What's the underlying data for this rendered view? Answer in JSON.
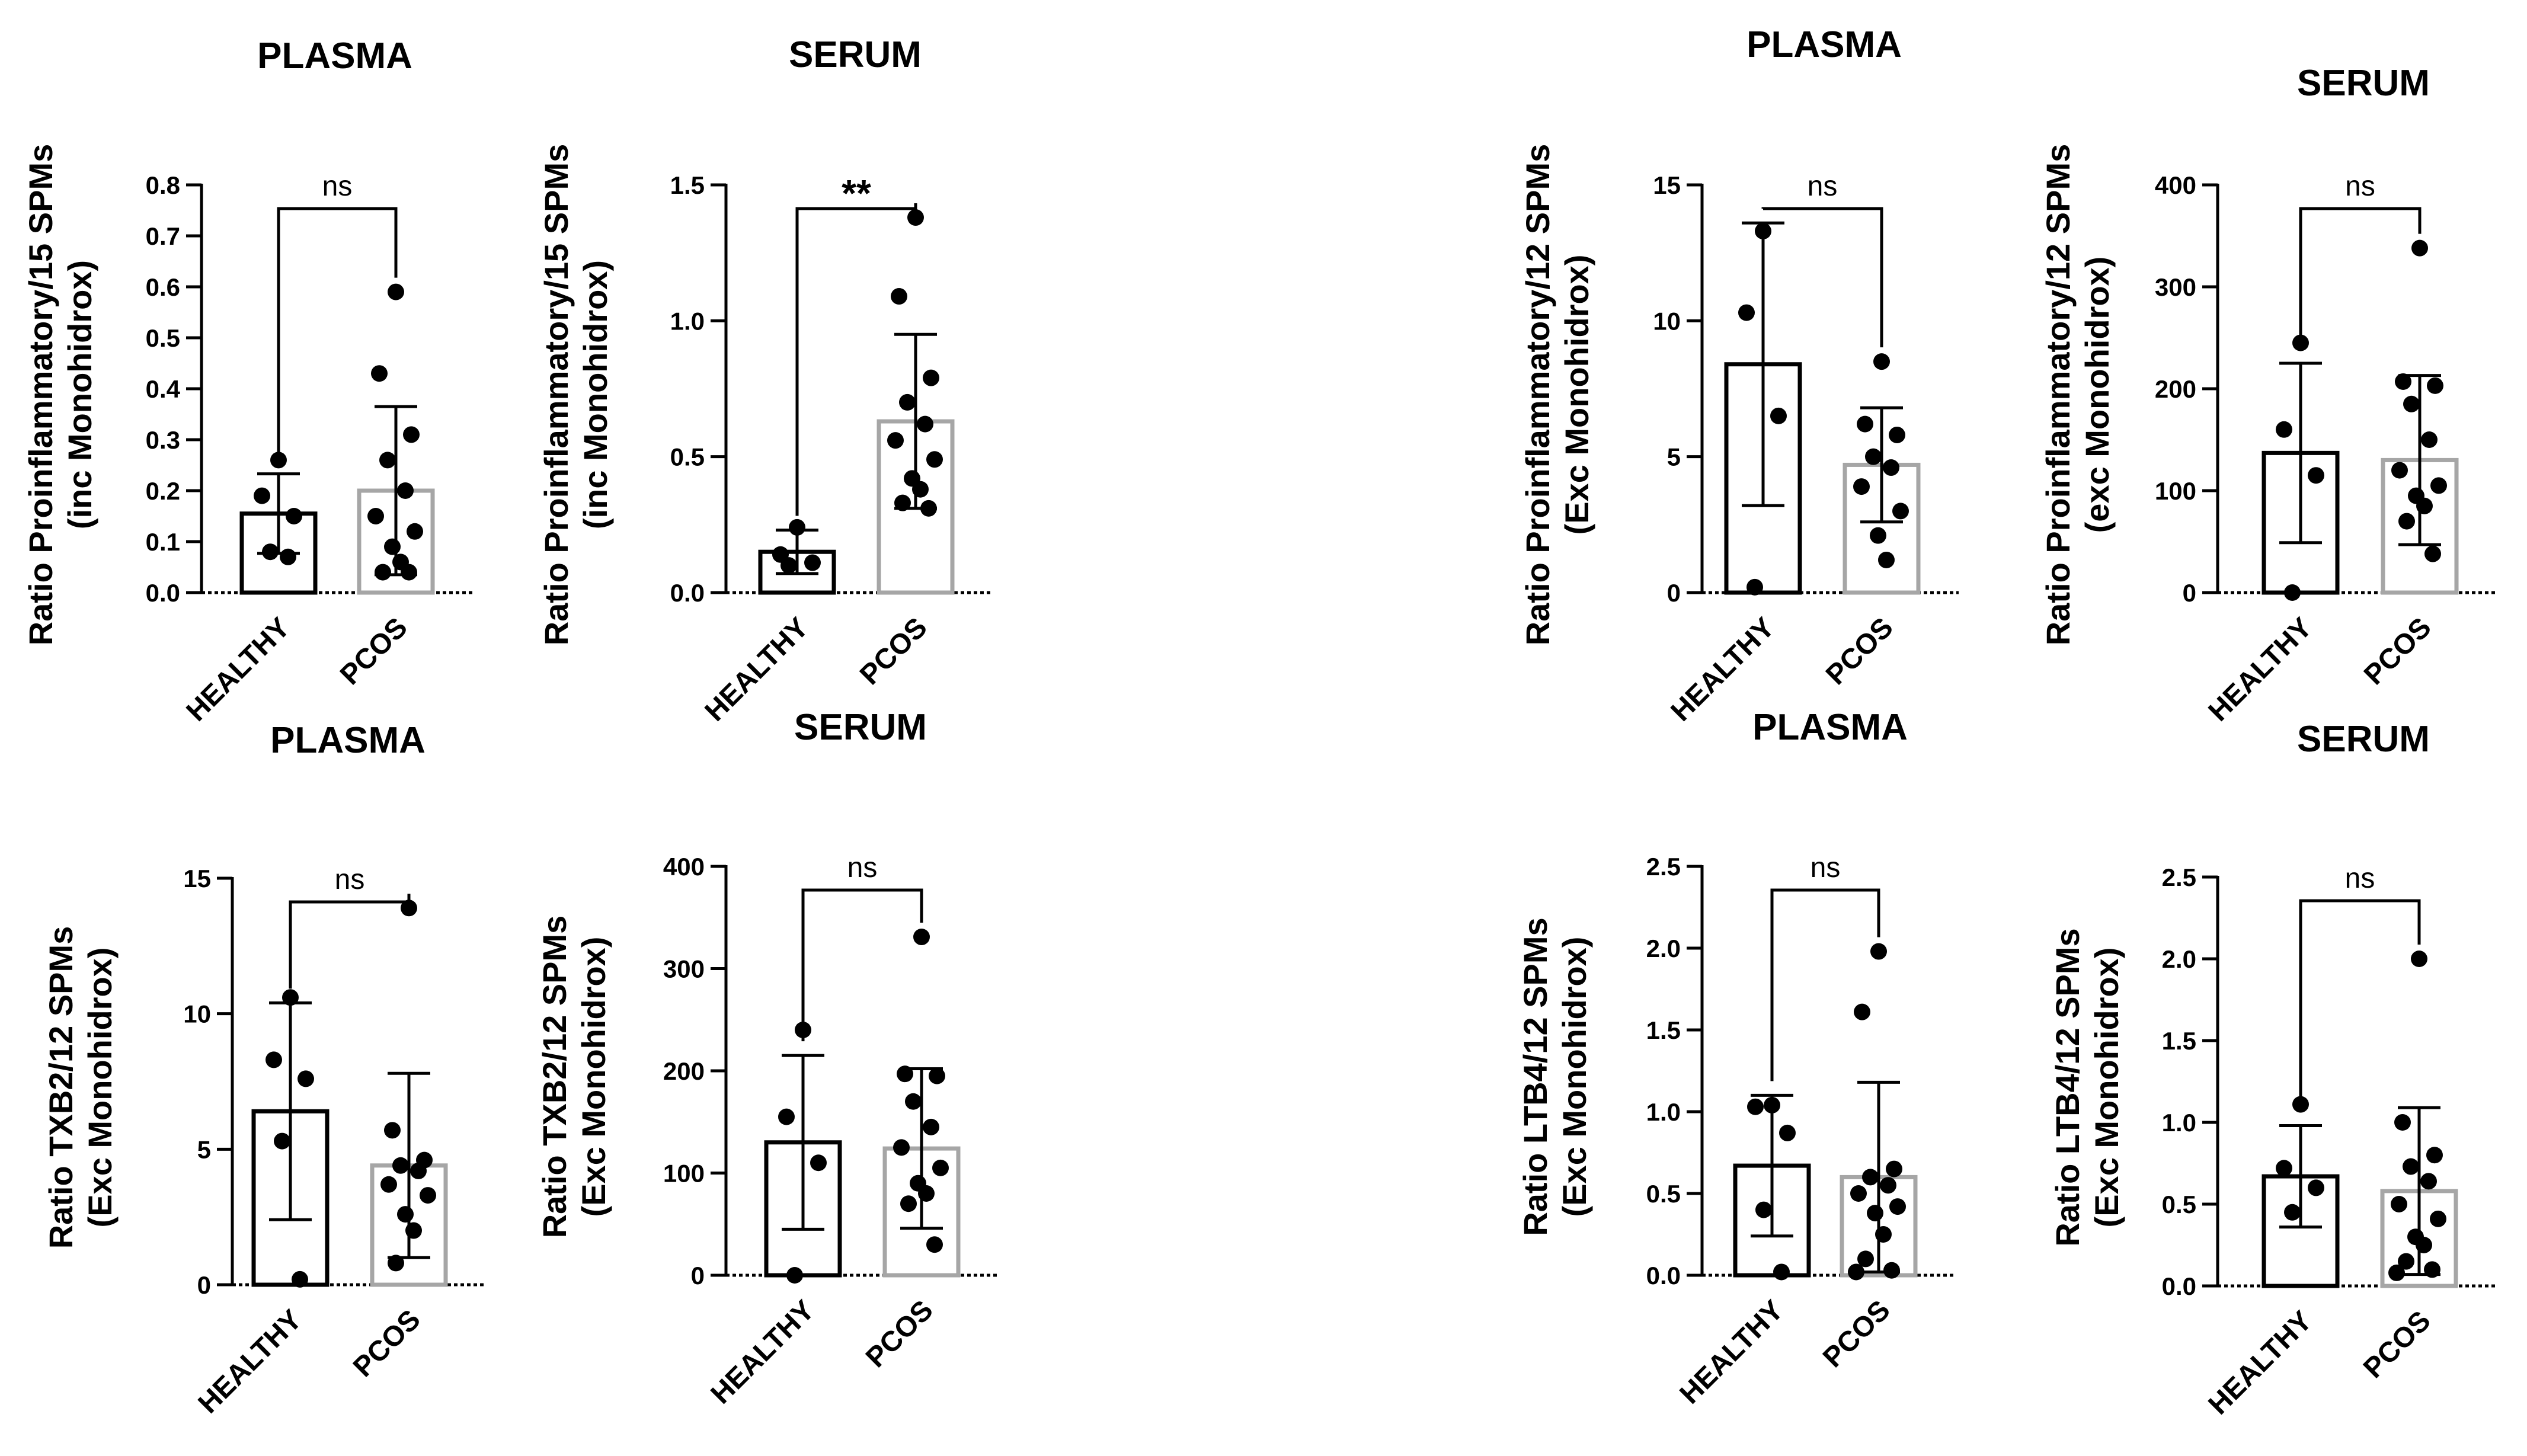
{
  "chart_data": [
    {
      "type": "bar",
      "title": "PLASMA",
      "ylabel_lines": [
        "Ratio Proinflammatory/15 SPMs",
        "(inc Monohidrox)"
      ],
      "categories": [
        "HEALTHY",
        "PCOS"
      ],
      "yticks": [
        0.0,
        0.1,
        0.2,
        0.3,
        0.4,
        0.5,
        0.6,
        0.7,
        0.8
      ],
      "ytick_labels": [
        "0.0",
        "0.1",
        "0.2",
        "0.3",
        "0.4",
        "0.5",
        "0.6",
        "0.7",
        "0.8"
      ],
      "ylim": [
        0,
        0.8
      ],
      "means": [
        0.155,
        0.2
      ],
      "sd": [
        0.078,
        0.165
      ],
      "points": [
        [
          0.26,
          0.19,
          0.15,
          0.08,
          0.07
        ],
        [
          0.59,
          0.43,
          0.31,
          0.26,
          0.2,
          0.15,
          0.12,
          0.09,
          0.06,
          0.04,
          0.04
        ]
      ],
      "significance": "ns"
    },
    {
      "type": "bar",
      "title": "SERUM",
      "ylabel_lines": [
        "Ratio Proinflammatory/15 SPMs",
        "(inc Monohidrox)"
      ],
      "categories": [
        "HEALTHY",
        "PCOS"
      ],
      "yticks": [
        0.0,
        0.5,
        1.0,
        1.5
      ],
      "ytick_labels": [
        "0.0",
        "0.5",
        "1.0",
        "1.5"
      ],
      "ylim": [
        0,
        1.5
      ],
      "means": [
        0.15,
        0.63
      ],
      "sd": [
        0.08,
        0.32
      ],
      "points": [
        [
          0.24,
          0.14,
          0.11,
          0.1
        ],
        [
          1.38,
          1.09,
          0.79,
          0.7,
          0.62,
          0.56,
          0.49,
          0.42,
          0.38,
          0.33,
          0.31
        ]
      ],
      "significance": "**"
    },
    {
      "type": "bar",
      "title": "PLASMA",
      "ylabel_lines": [
        "Ratio Proinflammatory/12 SPMs",
        "(Exc Monohidrox)"
      ],
      "categories": [
        "HEALTHY",
        "PCOS"
      ],
      "yticks": [
        0,
        5,
        10,
        15
      ],
      "ytick_labels": [
        "0",
        "5",
        "10",
        "15"
      ],
      "ylim": [
        0,
        15
      ],
      "means": [
        8.4,
        4.7
      ],
      "sd": [
        5.2,
        2.1
      ],
      "points": [
        [
          13.3,
          10.3,
          6.5,
          0.2
        ],
        [
          8.5,
          6.2,
          5.8,
          5.0,
          4.6,
          3.9,
          3.0,
          2.1,
          1.2
        ]
      ],
      "significance": "ns"
    },
    {
      "type": "bar",
      "title": "SERUM",
      "ylabel_lines": [
        "Ratio Proinflammatory/12 SPMs",
        "(exc Monohidrox)"
      ],
      "categories": [
        "HEALTHY",
        "PCOS"
      ],
      "yticks": [
        0,
        100,
        200,
        300,
        400
      ],
      "ytick_labels": [
        "0",
        "100",
        "200",
        "300",
        "400"
      ],
      "ylim": [
        0,
        400
      ],
      "means": [
        137,
        130
      ],
      "sd": [
        88,
        83
      ],
      "points": [
        [
          245,
          160,
          115,
          0
        ],
        [
          338,
          207,
          203,
          185,
          150,
          120,
          105,
          95,
          85,
          70,
          38
        ]
      ],
      "significance": "ns"
    },
    {
      "type": "bar",
      "title": "PLASMA",
      "ylabel_lines": [
        "Ratio TXB2/12 SPMs",
        "(Exc Monohidrox)"
      ],
      "categories": [
        "HEALTHY",
        "PCOS"
      ],
      "yticks": [
        0,
        5,
        10,
        15
      ],
      "ytick_labels": [
        "0",
        "5",
        "10",
        "15"
      ],
      "ylim": [
        0,
        15
      ],
      "means": [
        6.4,
        4.4
      ],
      "sd": [
        4.0,
        3.4
      ],
      "points": [
        [
          10.6,
          8.3,
          7.6,
          5.3,
          0.2
        ],
        [
          13.9,
          5.7,
          4.6,
          4.4,
          4.2,
          3.7,
          3.3,
          2.6,
          2.0,
          0.8
        ]
      ],
      "significance": "ns"
    },
    {
      "type": "bar",
      "title": "SERUM",
      "ylabel_lines": [
        "Ratio TXB2/12 SPMs",
        "(Exc Monohidrox)"
      ],
      "categories": [
        "HEALTHY",
        "PCOS"
      ],
      "yticks": [
        0,
        100,
        200,
        300,
        400
      ],
      "ytick_labels": [
        "0",
        "100",
        "200",
        "300",
        "400"
      ],
      "ylim": [
        0,
        400
      ],
      "means": [
        130,
        124
      ],
      "sd": [
        85,
        78
      ],
      "points": [
        [
          240,
          155,
          110,
          0
        ],
        [
          331,
          197,
          195,
          170,
          145,
          125,
          105,
          90,
          80,
          70,
          30
        ]
      ],
      "significance": "ns"
    },
    {
      "type": "bar",
      "title": "PLASMA",
      "ylabel_lines": [
        "Ratio LTB4/12 SPMs",
        "(Exc Monohidrox)"
      ],
      "categories": [
        "HEALTHY",
        "PCOS"
      ],
      "yticks": [
        0.0,
        0.5,
        1.0,
        1.5,
        2.0,
        2.5
      ],
      "ytick_labels": [
        "0.0",
        "0.5",
        "1.0",
        "1.5",
        "2.0",
        "2.5"
      ],
      "ylim": [
        0,
        2.5
      ],
      "means": [
        0.67,
        0.6
      ],
      "sd": [
        0.43,
        0.58
      ],
      "points": [
        [
          1.04,
          1.03,
          0.87,
          0.4,
          0.02
        ],
        [
          1.98,
          1.61,
          0.65,
          0.6,
          0.55,
          0.5,
          0.42,
          0.38,
          0.25,
          0.1,
          0.03,
          0.02
        ]
      ],
      "significance": "ns"
    },
    {
      "type": "bar",
      "title": "SERUM",
      "ylabel_lines": [
        "Ratio LTB4/12 SPMs",
        "(Exc Monohidrox)"
      ],
      "categories": [
        "HEALTHY",
        "PCOS"
      ],
      "yticks": [
        0.0,
        0.5,
        1.0,
        1.5,
        2.0,
        2.5
      ],
      "ytick_labels": [
        "0.0",
        "0.5",
        "1.0",
        "1.5",
        "2.0",
        "2.5"
      ],
      "ylim": [
        0,
        2.5
      ],
      "means": [
        0.67,
        0.58
      ],
      "sd": [
        0.31,
        0.51
      ],
      "points": [
        [
          1.11,
          0.72,
          0.6,
          0.45
        ],
        [
          2.0,
          1.0,
          0.8,
          0.73,
          0.64,
          0.5,
          0.41,
          0.3,
          0.25,
          0.15,
          0.1,
          0.08
        ]
      ],
      "significance": "ns"
    }
  ],
  "colors": {
    "healthy_bar": "#000000",
    "pcos_bar": "#a6a6a6",
    "points": "#000000",
    "axis": "#000000",
    "background": "#ffffff"
  }
}
